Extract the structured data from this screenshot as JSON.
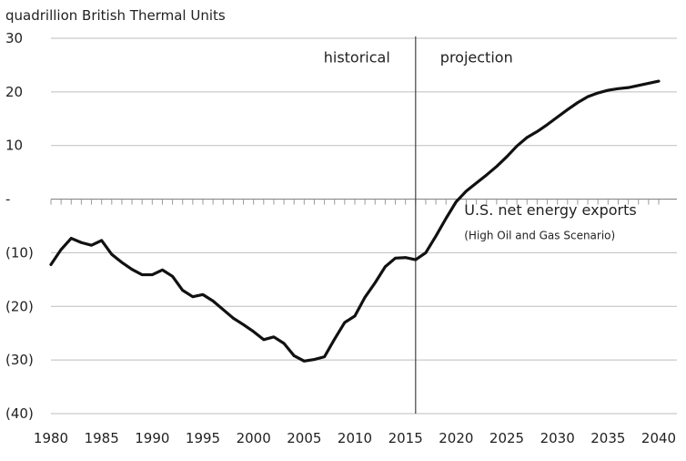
{
  "chart_data": {
    "type": "line",
    "title": "",
    "ylabel": "quadrillion British Thermal Units",
    "xlabel": "",
    "x_ticks": [
      "1980",
      "1985",
      "1990",
      "1995",
      "2000",
      "2005",
      "2010",
      "2015",
      "2020",
      "2025",
      "2030",
      "2035",
      "2040"
    ],
    "y_ticks": [
      {
        "value": 30,
        "label": "30"
      },
      {
        "value": 20,
        "label": "20"
      },
      {
        "value": 10,
        "label": "10"
      },
      {
        "value": 0,
        "label": "-"
      },
      {
        "value": -10,
        "label": "(10)"
      },
      {
        "value": -20,
        "label": "(20)"
      },
      {
        "value": -30,
        "label": "(30)"
      },
      {
        "value": -40,
        "label": "(40)"
      }
    ],
    "xlim": [
      1980,
      2040
    ],
    "ylim": [
      -40,
      30
    ],
    "grid": "horizontal",
    "divider_year": 2016,
    "region_labels": {
      "historical": "historical",
      "projection": "projection"
    },
    "series": [
      {
        "name": "U.S. net energy exports",
        "subtitle": "(High Oil and Gas Scenario)",
        "color": "#111111",
        "x": [
          1980,
          1981,
          1982,
          1983,
          1984,
          1985,
          1986,
          1987,
          1988,
          1989,
          1990,
          1991,
          1992,
          1993,
          1994,
          1995,
          1996,
          1997,
          1998,
          1999,
          2000,
          2001,
          2002,
          2003,
          2004,
          2005,
          2006,
          2007,
          2008,
          2009,
          2010,
          2011,
          2012,
          2013,
          2014,
          2015,
          2016,
          2017,
          2018,
          2019,
          2020,
          2021,
          2022,
          2023,
          2024,
          2025,
          2026,
          2027,
          2028,
          2029,
          2030,
          2031,
          2032,
          2033,
          2034,
          2035,
          2036,
          2037,
          2038,
          2039,
          2040
        ],
        "y": [
          -12.2,
          -9.4,
          -7.3,
          -8.1,
          -8.6,
          -7.7,
          -10.3,
          -11.8,
          -13.1,
          -14.1,
          -14.1,
          -13.2,
          -14.4,
          -17.0,
          -18.2,
          -17.8,
          -19.0,
          -20.6,
          -22.2,
          -23.4,
          -24.7,
          -26.2,
          -25.7,
          -26.9,
          -29.2,
          -30.2,
          -29.9,
          -29.4,
          -26.1,
          -23.0,
          -21.8,
          -18.3,
          -15.6,
          -12.6,
          -11.0,
          -10.9,
          -11.3,
          -10.0,
          -6.9,
          -3.6,
          -0.5,
          1.5,
          3.0,
          4.5,
          6.1,
          7.9,
          9.9,
          11.5,
          12.6,
          13.9,
          15.3,
          16.7,
          18.0,
          19.1,
          19.8,
          20.3,
          20.6,
          20.8,
          21.2,
          21.6,
          22.0
        ]
      }
    ]
  }
}
